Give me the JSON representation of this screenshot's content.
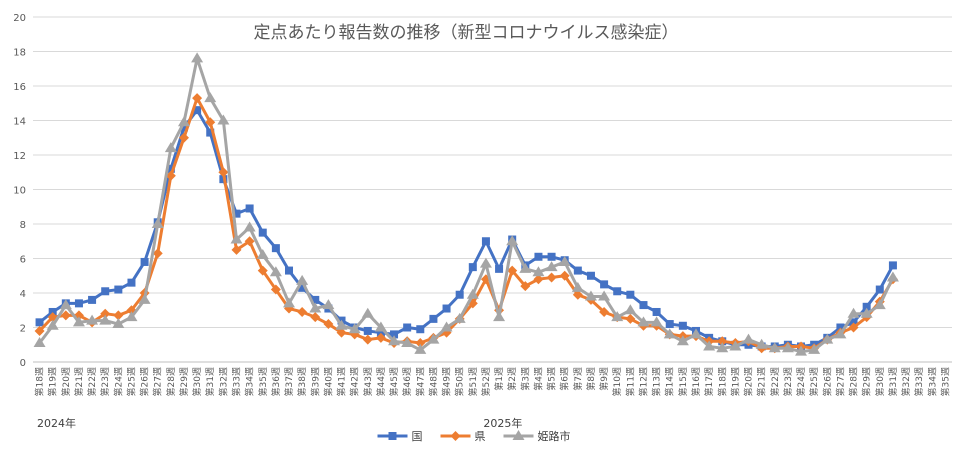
{
  "chart_data": {
    "type": "line",
    "title": "定点あたり報告数の推移（新型コロナウイルス感染症）",
    "xlabel": "",
    "ylabel": "",
    "ylim": [
      0,
      20
    ],
    "yticks": [
      0,
      2,
      4,
      6,
      8,
      10,
      12,
      14,
      16,
      18,
      20
    ],
    "grid": true,
    "legend_position": "bottom",
    "year_labels": [
      {
        "text": "2024年",
        "at_index": 0
      },
      {
        "text": "2025年",
        "at_index": 34
      }
    ],
    "categories": [
      "第18週",
      "第19週",
      "第20週",
      "第21週",
      "第22週",
      "第23週",
      "第24週",
      "第25週",
      "第26週",
      "第27週",
      "第28週",
      "第29週",
      "第30週",
      "第31週",
      "第32週",
      "第33週",
      "第34週",
      "第35週",
      "第36週",
      "第37週",
      "第38週",
      "第39週",
      "第40週",
      "第41週",
      "第42週",
      "第43週",
      "第44週",
      "第45週",
      "第46週",
      "第47週",
      "第48週",
      "第49週",
      "第50週",
      "第51週",
      "第52週",
      "第1週",
      "第2週",
      "第3週",
      "第4週",
      "第5週",
      "第6週",
      "第7週",
      "第8週",
      "第9週",
      "第10週",
      "第11週",
      "第12週",
      "第13週",
      "第14週",
      "第15週",
      "第16週",
      "第17週",
      "第18週",
      "第19週",
      "第20週",
      "第21週",
      "第22週",
      "第23週",
      "第24週",
      "第25週",
      "第26週",
      "第27週",
      "第28週",
      "第29週",
      "第30週",
      "第31週",
      "第32週",
      "第33週",
      "第34週",
      "第35週"
    ],
    "series": [
      {
        "name": "国",
        "color": "#4472c4",
        "marker": "square",
        "values": [
          2.3,
          2.9,
          3.4,
          3.4,
          3.6,
          4.1,
          4.2,
          4.6,
          5.8,
          8.1,
          11.2,
          13.6,
          14.6,
          13.3,
          10.6,
          8.6,
          8.9,
          7.5,
          6.6,
          5.3,
          4.3,
          3.6,
          3.1,
          2.4,
          2.0,
          1.8,
          1.7,
          1.6,
          2.0,
          1.9,
          2.5,
          3.1,
          3.9,
          5.5,
          7.0,
          5.4,
          7.1,
          5.6,
          6.1,
          6.1,
          5.9,
          5.3,
          5.0,
          4.5,
          4.1,
          3.9,
          3.3,
          2.9,
          2.2,
          2.1,
          1.8,
          1.4,
          1.2,
          1.0,
          1.0,
          0.9,
          0.9,
          1.0,
          0.9,
          1.0,
          1.4,
          2.0,
          2.3,
          3.2,
          4.2,
          5.6,
          null,
          null,
          null,
          null
        ]
      },
      {
        "name": "県",
        "color": "#ed7d31",
        "marker": "diamond",
        "values": [
          1.8,
          2.6,
          2.7,
          2.7,
          2.3,
          2.8,
          2.7,
          3.0,
          4.0,
          6.3,
          10.8,
          13.0,
          15.3,
          13.9,
          11.0,
          6.5,
          7.0,
          5.3,
          4.2,
          3.1,
          2.9,
          2.6,
          2.2,
          1.7,
          1.6,
          1.3,
          1.4,
          1.1,
          1.2,
          1.1,
          1.4,
          1.7,
          2.5,
          3.4,
          4.8,
          3.0,
          5.3,
          4.4,
          4.8,
          4.9,
          5.0,
          3.9,
          3.6,
          2.9,
          2.6,
          2.5,
          2.1,
          2.1,
          1.6,
          1.5,
          1.5,
          1.2,
          1.2,
          1.1,
          1.2,
          0.8,
          0.8,
          0.9,
          0.9,
          0.8,
          1.3,
          1.7,
          2.0,
          2.6,
          3.5,
          4.8,
          null,
          null,
          null,
          null
        ]
      },
      {
        "name": "姫路市",
        "color": "#a5a5a5",
        "marker": "triangle",
        "values": [
          1.1,
          2.1,
          3.3,
          2.3,
          2.4,
          2.4,
          2.2,
          2.6,
          3.6,
          8.0,
          12.4,
          13.9,
          17.6,
          15.3,
          14.0,
          7.1,
          7.8,
          6.2,
          5.2,
          3.4,
          4.7,
          3.1,
          3.3,
          2.1,
          1.9,
          2.8,
          2.0,
          1.2,
          1.1,
          0.7,
          1.3,
          2.0,
          2.5,
          3.9,
          5.7,
          2.6,
          7.0,
          5.4,
          5.2,
          5.5,
          5.8,
          4.3,
          3.8,
          3.8,
          2.6,
          3.0,
          2.3,
          2.3,
          1.6,
          1.2,
          1.6,
          0.9,
          0.8,
          0.9,
          1.3,
          1.0,
          0.8,
          0.8,
          0.6,
          0.7,
          1.3,
          1.6,
          2.8,
          2.8,
          3.3,
          4.9,
          null,
          null,
          null,
          null
        ]
      }
    ]
  }
}
